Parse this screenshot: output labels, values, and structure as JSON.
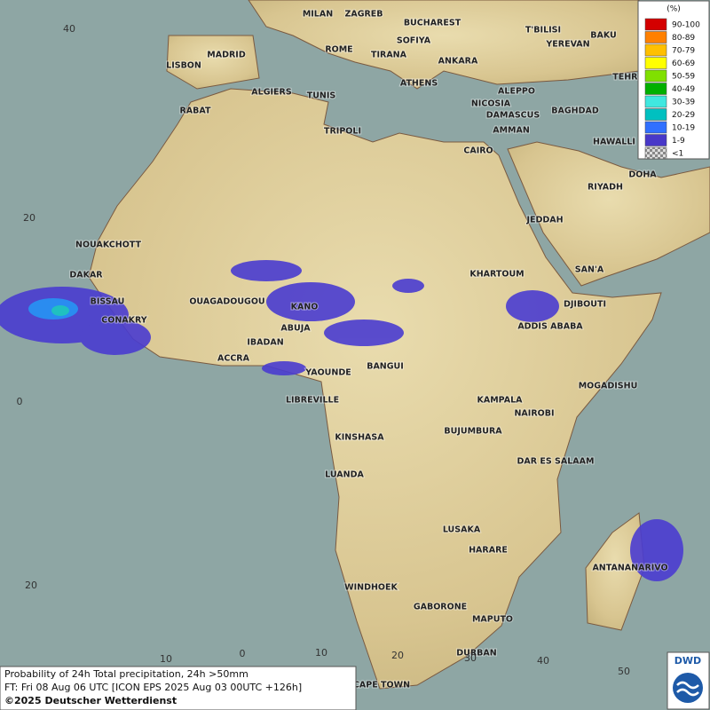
{
  "map": {
    "cities": [
      "MILAN",
      "ZAGREB",
      "BUCHAREST",
      "T'BILISI",
      "BAKU",
      "ROME",
      "SOFIYA",
      "YEREVAN",
      "MADRID",
      "TIRANA",
      "ANKARA",
      "TEHRAN",
      "LISBON",
      "ATHENS",
      "ALGIERS",
      "TUNIS",
      "ALEPPO",
      "RABAT",
      "NICOSIA",
      "BAGHDAD",
      "DAMASCUS",
      "TRIPOLI",
      "AMMAN",
      "HAWALLI",
      "CAIRO",
      "DOHA",
      "RIYADH",
      "JEDDAH",
      "NOUAKCHOTT",
      "SAN'A",
      "KHARTOUM",
      "DAKAR",
      "BISSAU",
      "OUAGADOUGOU",
      "KANO",
      "DJIBOUTI",
      "CONAKRY",
      "ABUJA",
      "ADDIS ABABA",
      "IBADAN",
      "ACCRA",
      "BANGUI",
      "YAOUNDE",
      "MOGADISHU",
      "LIBREVILLE",
      "KAMPALA",
      "NAIROBI",
      "BUJUMBURA",
      "KINSHASA",
      "DAR ES SALAAM",
      "LUANDA",
      "LUSAKA",
      "HARARE",
      "ANTANANARIVO",
      "WINDHOEK",
      "GABORONE",
      "MAPUTO",
      "DURBAN",
      "CAPE TOWN"
    ],
    "lat_labels": [
      "40",
      "20",
      "0",
      "20"
    ],
    "lon_labels": [
      "10",
      "0",
      "10",
      "20",
      "30",
      "40",
      "50"
    ]
  },
  "legend": {
    "title": "(%)",
    "entries": [
      {
        "label": "90-100",
        "color": "#d40000"
      },
      {
        "label": "80-89",
        "color": "#ff8000"
      },
      {
        "label": "70-79",
        "color": "#ffc000"
      },
      {
        "label": "60-69",
        "color": "#ffff00"
      },
      {
        "label": "50-59",
        "color": "#80e000"
      },
      {
        "label": "40-49",
        "color": "#00b000"
      },
      {
        "label": "30-39",
        "color": "#40e8e0"
      },
      {
        "label": "20-29",
        "color": "#00c0c0"
      },
      {
        "label": "10-19",
        "color": "#3070ff"
      },
      {
        "label": "1-9",
        "color": "#4838c8"
      },
      {
        "label": "<1",
        "color": "#b0b0b0"
      }
    ]
  },
  "footer": {
    "line1": "Probability of 24h Total precipitation, 24h >50mm",
    "line2": "FT: Fri 08 Aug 06 UTC [ICON EPS 2025 Aug 03 00UTC +126h]",
    "line3": "©2025 Deutscher Wetterdienst"
  },
  "logo": {
    "text": "DWD"
  }
}
